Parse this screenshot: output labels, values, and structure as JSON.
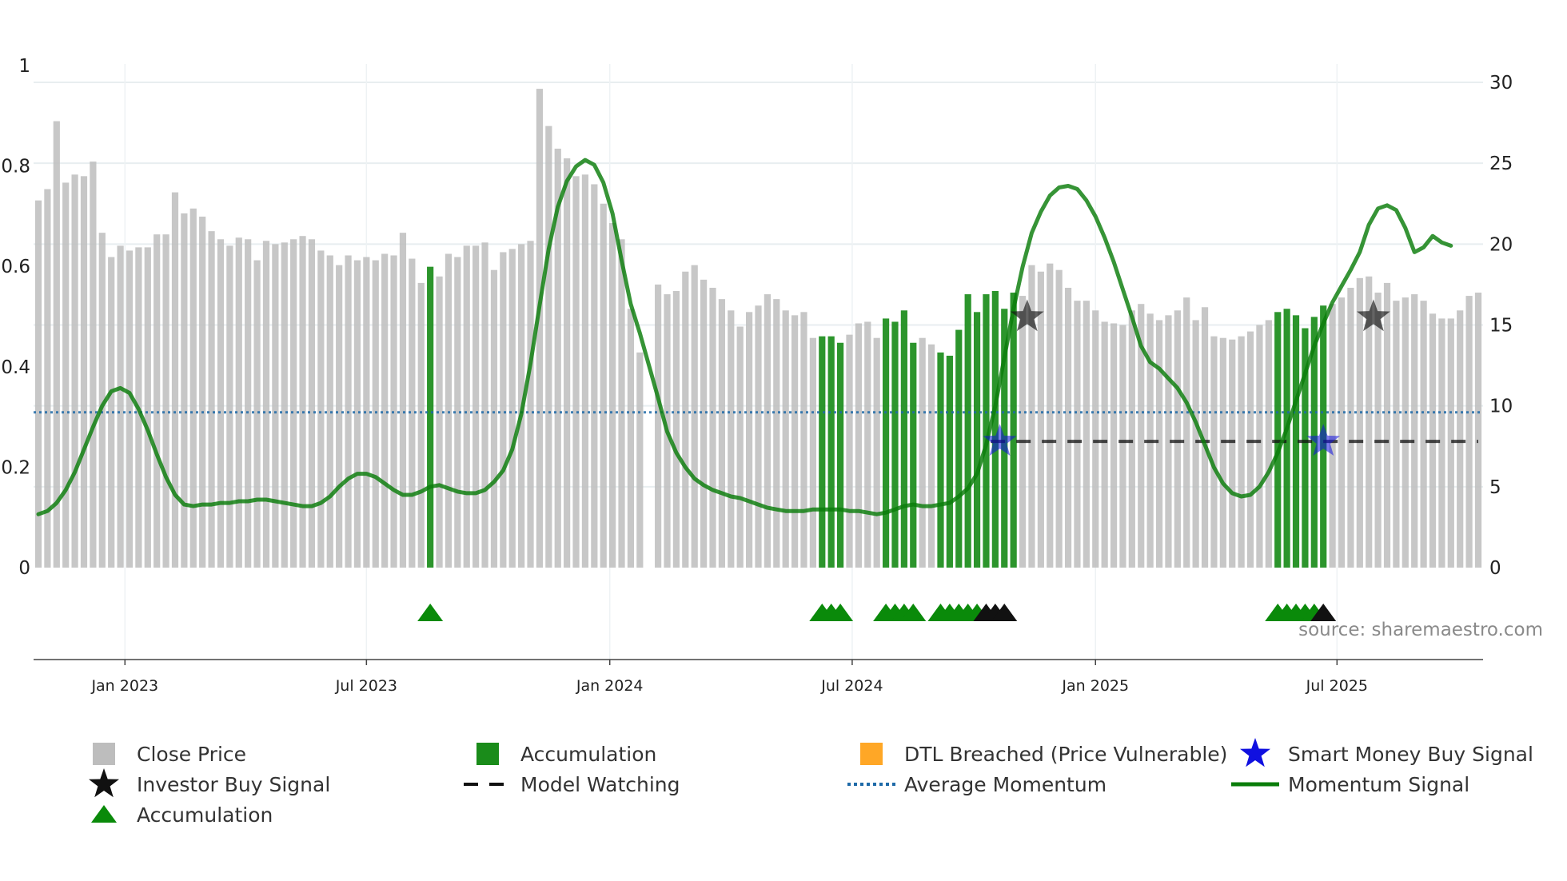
{
  "chart_data": {
    "type": "bar",
    "source_label": "source: sharemaestro.com",
    "left_axis": {
      "ylim": [
        0,
        1
      ],
      "ticks": [
        {
          "v": 0,
          "label": "0"
        },
        {
          "v": 0.2,
          "label": "0.2"
        },
        {
          "v": 0.4,
          "label": "0.4"
        },
        {
          "v": 0.6,
          "label": "0.6"
        },
        {
          "v": 0.8,
          "label": "0.8"
        },
        {
          "v": 1,
          "label": "1"
        }
      ]
    },
    "right_axis": {
      "ylim": [
        0,
        30
      ],
      "ticks": [
        {
          "v": 0,
          "label": "0"
        },
        {
          "v": 5,
          "label": "5"
        },
        {
          "v": 10,
          "label": "10"
        },
        {
          "v": 15,
          "label": "15"
        },
        {
          "v": 20,
          "label": "20"
        },
        {
          "v": 25,
          "label": "25"
        },
        {
          "v": 30,
          "label": "30"
        }
      ]
    },
    "x_axis": {
      "start": 0,
      "end": 161,
      "ticks": [
        {
          "week": 9.5,
          "label": "Jan 2023"
        },
        {
          "week": 36,
          "label": "Jul 2023"
        },
        {
          "week": 62.7,
          "label": "Jan 2024"
        },
        {
          "week": 89.3,
          "label": "Jul 2024"
        },
        {
          "week": 116,
          "label": "Jan 2025"
        },
        {
          "week": 142.5,
          "label": "Jul 2025"
        }
      ]
    },
    "close_price": [
      22.7,
      23.4,
      27.6,
      23.8,
      24.3,
      24.2,
      25.1,
      20.7,
      19.2,
      19.9,
      19.6,
      19.8,
      19.8,
      20.6,
      20.6,
      23.2,
      21.9,
      22.2,
      21.7,
      20.8,
      20.3,
      19.9,
      20.4,
      20.3,
      19.0,
      20.2,
      20.0,
      20.1,
      20.3,
      20.5,
      20.3,
      19.6,
      19.3,
      18.7,
      19.3,
      19.0,
      19.2,
      19.0,
      19.4,
      19.3,
      20.7,
      19.1,
      17.6,
      18.6,
      18.0,
      19.4,
      19.2,
      19.9,
      19.9,
      20.1,
      18.4,
      19.5,
      19.7,
      20.0,
      20.2,
      29.6,
      27.3,
      25.9,
      25.3,
      24.2,
      24.3,
      23.7,
      22.5,
      21.3,
      20.3,
      16.0,
      13.3,
      0,
      17.5,
      16.9,
      17.1,
      18.3,
      18.7,
      17.8,
      17.3,
      16.6,
      15.9,
      14.9,
      15.8,
      16.2,
      16.9,
      16.6,
      15.9,
      15.6,
      15.8,
      14.2,
      14.3,
      14.3,
      13.9,
      14.4,
      15.1,
      15.2,
      14.2,
      15.4,
      15.2,
      15.9,
      13.9,
      14.2,
      13.8,
      13.3,
      13.1,
      14.7,
      16.9,
      15.8,
      16.9,
      17.1,
      16.0,
      17.0,
      16.8,
      18.7,
      18.3,
      18.8,
      18.4,
      17.3,
      16.5,
      16.5,
      15.9,
      15.2,
      15.1,
      15.0,
      15.9,
      16.3,
      15.7,
      15.3,
      15.6,
      15.9,
      16.7,
      15.3,
      16.1,
      14.3,
      14.2,
      14.1,
      14.3,
      14.6,
      15.0,
      15.3,
      15.8,
      16.0,
      15.6,
      14.8,
      15.5,
      16.2,
      16.3,
      16.7,
      17.3,
      17.9,
      18.0,
      17.0,
      17.6,
      16.5,
      16.7,
      16.9,
      16.5,
      15.7,
      15.4,
      15.4,
      15.9,
      16.8,
      17.0
    ],
    "accumulation_weeks": [
      43,
      86,
      87,
      88,
      93,
      94,
      95,
      96,
      99,
      100,
      101,
      102,
      103,
      104,
      105,
      106,
      107,
      136,
      137,
      138,
      139,
      140,
      141
    ],
    "momentum_signal": [
      3.3,
      3.5,
      4.0,
      4.8,
      5.9,
      7.3,
      8.7,
      10.0,
      10.9,
      11.1,
      10.8,
      9.8,
      8.5,
      7.0,
      5.6,
      4.5,
      3.9,
      3.8,
      3.9,
      3.9,
      4.0,
      4.0,
      4.1,
      4.1,
      4.2,
      4.2,
      4.1,
      4.0,
      3.9,
      3.8,
      3.8,
      4.0,
      4.4,
      5.0,
      5.5,
      5.8,
      5.8,
      5.6,
      5.2,
      4.8,
      4.5,
      4.5,
      4.7,
      5.0,
      5.1,
      4.9,
      4.7,
      4.6,
      4.6,
      4.8,
      5.3,
      6.0,
      7.3,
      9.5,
      12.6,
      16.2,
      19.7,
      22.3,
      23.9,
      24.8,
      25.2,
      24.9,
      23.8,
      21.9,
      19.0,
      16.3,
      14.5,
      12.5,
      10.5,
      8.4,
      7.1,
      6.2,
      5.5,
      5.1,
      4.8,
      4.6,
      4.4,
      4.3,
      4.1,
      3.9,
      3.7,
      3.6,
      3.5,
      3.5,
      3.5,
      3.6,
      3.6,
      3.6,
      3.6,
      3.5,
      3.5,
      3.4,
      3.3,
      3.4,
      3.6,
      3.8,
      3.9,
      3.8,
      3.8,
      3.9,
      4.0,
      4.4,
      4.9,
      5.8,
      7.6,
      10.0,
      13.0,
      16.0,
      18.6,
      20.7,
      22.0,
      23.0,
      23.5,
      23.6,
      23.4,
      22.7,
      21.7,
      20.4,
      18.9,
      17.2,
      15.5,
      13.7,
      12.7,
      12.3,
      11.7,
      11.1,
      10.2,
      9.0,
      7.6,
      6.2,
      5.2,
      4.6,
      4.4,
      4.5,
      5.0,
      5.9,
      7.1,
      8.6,
      10.3,
      12.0,
      13.7,
      15.1,
      16.4,
      17.4,
      18.4,
      19.5,
      21.2,
      22.2,
      22.4,
      22.1,
      21.0,
      19.5,
      19.8,
      20.5,
      20.1,
      19.9
    ],
    "average_momentum": 9.6,
    "model_watching": {
      "start_week": 104.5,
      "end_week": 158,
      "value": 7.8
    },
    "accumulation_triangles": [
      43,
      86,
      87,
      88,
      93,
      94,
      95,
      96,
      99,
      100,
      101,
      102,
      103,
      136,
      137,
      138,
      139,
      140
    ],
    "investor_triangles": [
      104,
      105,
      106,
      141
    ],
    "smart_money_signals": [
      {
        "week": 105.5,
        "value": 7.8
      },
      {
        "week": 141,
        "value": 7.8
      }
    ],
    "investor_signals": [
      {
        "week": 108.5,
        "value": 15.5
      },
      {
        "week": 146.5,
        "value": 15.5
      }
    ],
    "colors": {
      "close_price": "#bdbdbd",
      "accumulation": "#1a8c1a",
      "dtl": "#ffa726",
      "smart_money": "#1010e0",
      "investor": "#111111",
      "momentum": "#0a7d0a",
      "average_momentum": "#1f6aa8",
      "model_watching": "#111111",
      "accumulation_triangle": "#0a8a0a"
    },
    "legend": [
      {
        "key": "close",
        "label": "Close Price",
        "symbol": "square",
        "color": "#bdbdbd"
      },
      {
        "key": "accum_bar",
        "label": "Accumulation",
        "symbol": "square",
        "color": "#1a8c1a"
      },
      {
        "key": "dtl",
        "label": "DTL Breached (Price Vulnerable)",
        "symbol": "square",
        "color": "#ffa726"
      },
      {
        "key": "smart",
        "label": "Smart Money Buy Signal",
        "symbol": "star",
        "color": "#1010e0"
      },
      {
        "key": "investor",
        "label": "Investor Buy Signal",
        "symbol": "star",
        "color": "#111111"
      },
      {
        "key": "watching",
        "label": "Model Watching",
        "symbol": "dash",
        "color": "#111111"
      },
      {
        "key": "avg",
        "label": "Average Momentum",
        "symbol": "dot",
        "color": "#1f6aa8"
      },
      {
        "key": "momentum",
        "label": "Momentum Signal",
        "symbol": "line",
        "color": "#0a7d0a"
      },
      {
        "key": "accum_tri",
        "label": "Accumulation",
        "symbol": "triangle",
        "color": "#0a8a0a"
      }
    ]
  }
}
